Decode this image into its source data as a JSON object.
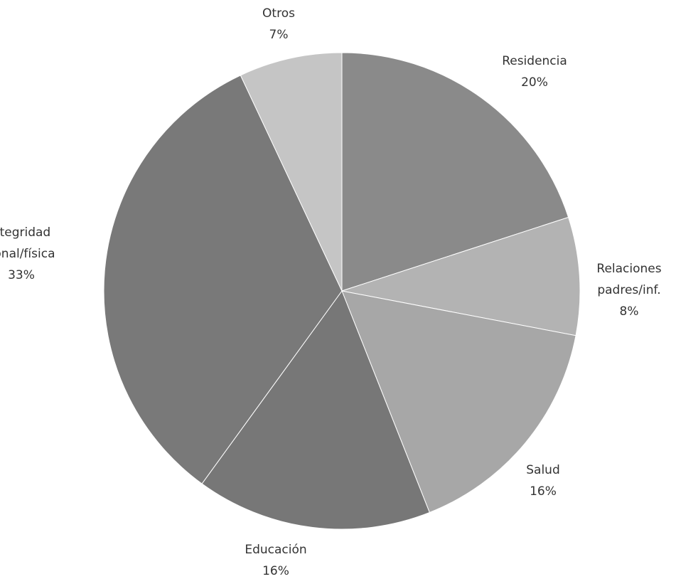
{
  "chart_data": {
    "type": "pie",
    "title": "",
    "start_angle_degrees": 0,
    "direction": "clockwise",
    "categories": [
      "Residencia",
      "Relaciones padres/inf.",
      "Salud",
      "Educación",
      "Integridad personal/física",
      "Otros"
    ],
    "values": [
      20,
      8,
      16,
      16,
      33,
      7
    ],
    "data_labels": [
      {
        "line1": "Residencia",
        "line2": "",
        "value_label": "20%"
      },
      {
        "line1": "Relaciones",
        "line2": "padres/inf. ",
        "value_label": "8%"
      },
      {
        "line1": "Salud",
        "line2": "",
        "value_label": "16%"
      },
      {
        "line1": "Educación",
        "line2": "",
        "value_label": "16%"
      },
      {
        "line1": "ntegridad",
        "line2": "sonal/física",
        "value_label": "33%"
      },
      {
        "line1": "Otros",
        "line2": "",
        "value_label": "7%"
      }
    ],
    "colors": [
      "#8a8a8a",
      "#b3b3b3",
      "#a7a7a7",
      "#777777",
      "#797979",
      "#c5c5c5"
    ],
    "legend": "none"
  }
}
